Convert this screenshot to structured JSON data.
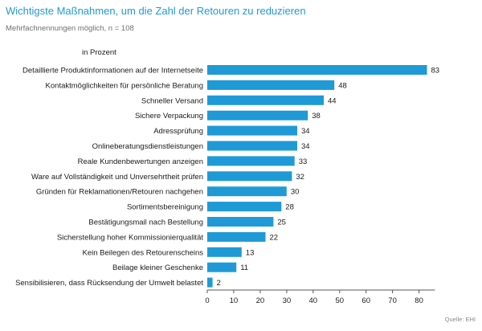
{
  "header": {
    "title": "Wichtigste Maßnahmen, um die Zahl der Retouren zu reduzieren",
    "subtitle": "Mehrfachnennungen möglich, n = 108",
    "unit_label": "in Prozent"
  },
  "footer": {
    "source": "Quelle: EHI"
  },
  "colors": {
    "bar": "#1f9ad6",
    "axis": "#555555"
  },
  "chart_data": {
    "type": "bar",
    "orientation": "horizontal",
    "categories": [
      "Detaillierte Produktinformationen auf der Internetseite",
      "Kontaktmöglichkeiten für persönliche Beratung",
      "Schneller Versand",
      "Sichere Verpackung",
      "Adressprüfung",
      "Onlineberatungsdienstleistungen",
      "Reale Kundenbewertungen anzeigen",
      "Ware auf Vollständigkeit und Unversehrtheit prüfen",
      "Gründen für Reklamationen/Retouren nachgehen",
      "Sortimentsbereinigung",
      "Bestätigungsmail nach Bestellung",
      "Sicherstellung hoher Kommissionierqualität",
      "Kein Beilegen des Retourenscheins",
      "Beilage kleiner Geschenke",
      "Sensibilisieren, dass Rücksendung der Umwelt belastet"
    ],
    "values": [
      83,
      48,
      44,
      38,
      34,
      34,
      33,
      32,
      30,
      28,
      25,
      22,
      13,
      11,
      2
    ],
    "xlim": [
      0,
      86
    ],
    "xticks": [
      0,
      10,
      20,
      30,
      40,
      50,
      60,
      70,
      80
    ],
    "grid": false,
    "legend": "none"
  }
}
